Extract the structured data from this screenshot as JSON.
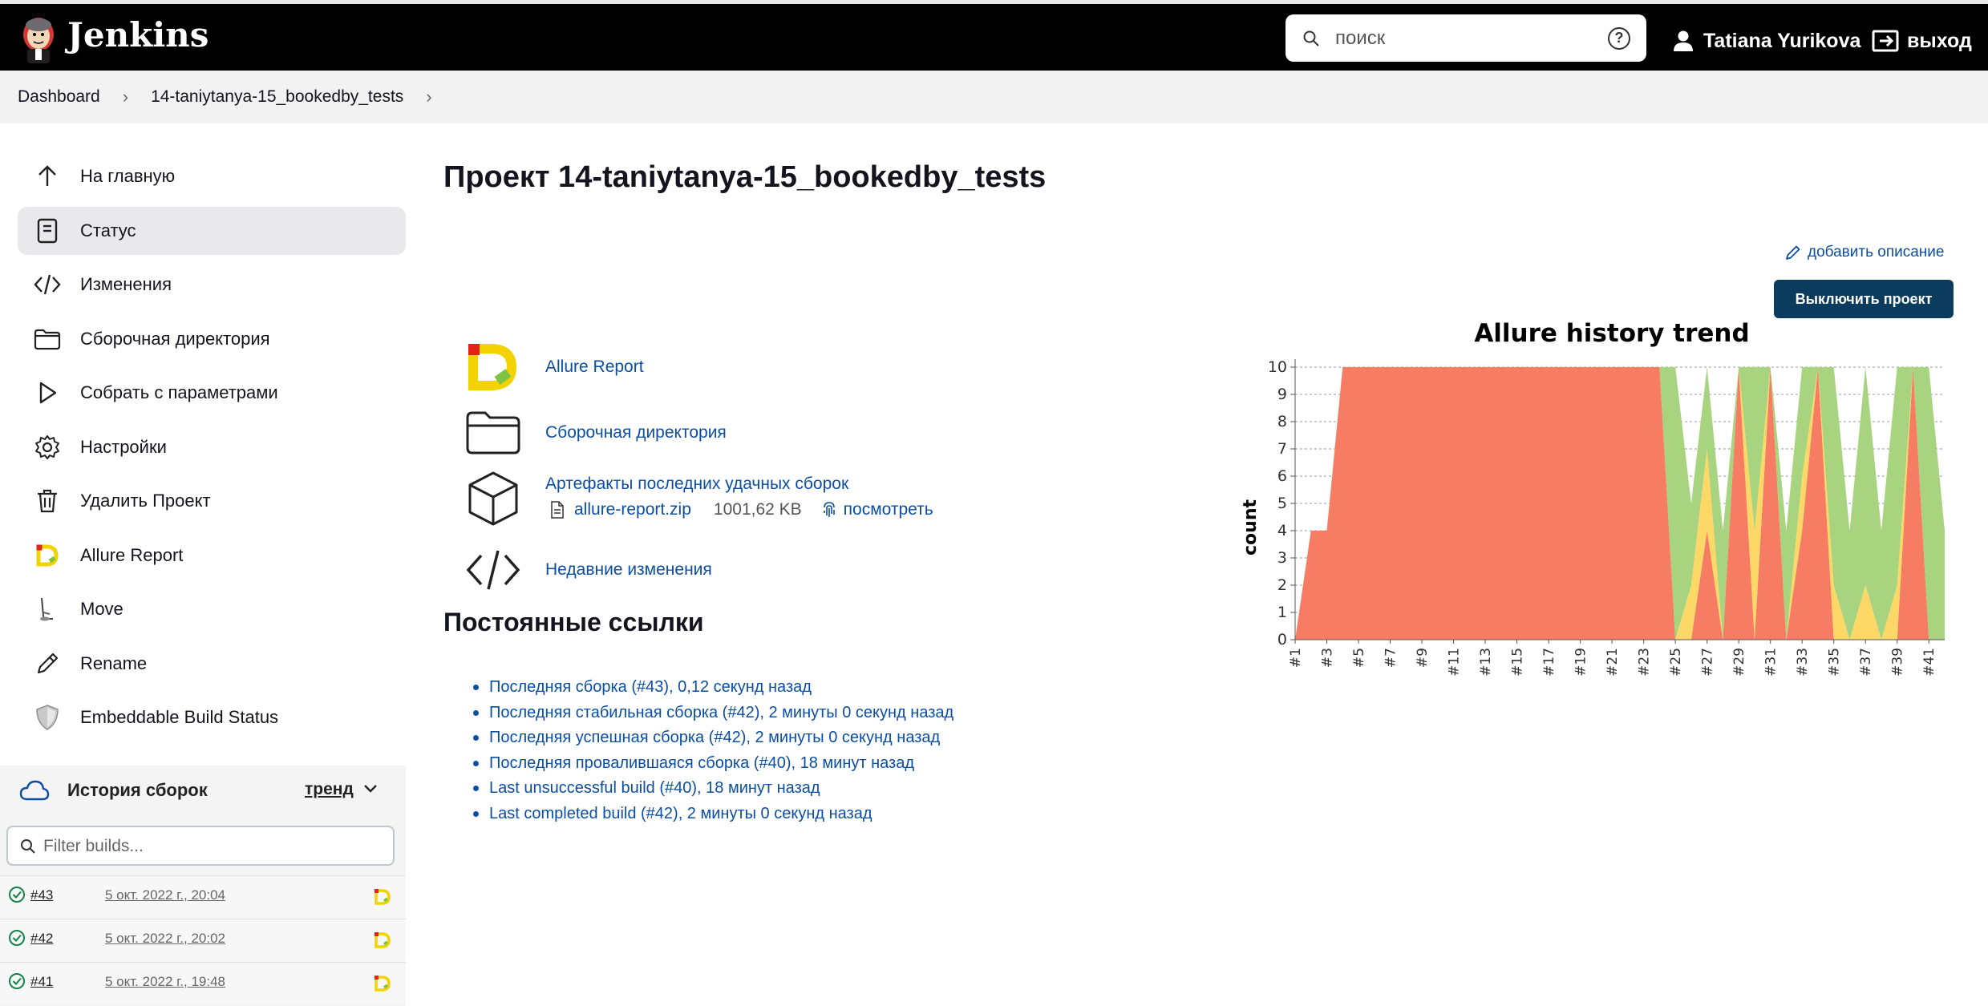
{
  "header": {
    "brand": "Jenkins",
    "search_placeholder": "поиск",
    "help": "?",
    "user_name": "Tatiana Yurikova",
    "logout_label": "выход"
  },
  "breadcrumb": {
    "items": [
      "Dashboard",
      "14-taniytanya-15_bookedby_tests"
    ]
  },
  "sidebar": {
    "tasks": [
      {
        "label": "На главную",
        "icon": "arrow-up-icon"
      },
      {
        "label": "Статус",
        "icon": "document-icon",
        "active": true
      },
      {
        "label": "Изменения",
        "icon": "code-icon"
      },
      {
        "label": "Сборочная директория",
        "icon": "folder-icon"
      },
      {
        "label": "Собрать с параметрами",
        "icon": "play-icon"
      },
      {
        "label": "Настройки",
        "icon": "gear-icon"
      },
      {
        "label": "Удалить Проект",
        "icon": "trash-icon"
      },
      {
        "label": "Allure Report",
        "icon": "allure-icon"
      },
      {
        "label": "Move",
        "icon": "move-icon"
      },
      {
        "label": "Rename",
        "icon": "pencil-icon"
      },
      {
        "label": "Embeddable Build Status",
        "icon": "shield-icon"
      }
    ]
  },
  "history": {
    "title": "История сборок",
    "trend_label": "тренд",
    "filter_placeholder": "Filter builds...",
    "builds": [
      {
        "number": "#43",
        "date": "5 окт. 2022 г., 20:04"
      },
      {
        "number": "#42",
        "date": "5 окт. 2022 г., 20:02"
      },
      {
        "number": "#41",
        "date": "5 окт. 2022 г., 19:48"
      }
    ]
  },
  "main": {
    "title": "Проект 14-taniytanya-15_bookedby_tests",
    "add_description": "добавить описание",
    "disable_button": "Выключить проект",
    "actions": {
      "allure": "Allure Report",
      "workspace": "Сборочная директория",
      "artifacts": "Артефакты последних удачных сборок",
      "artifact_file": "allure-report.zip",
      "artifact_size": "1001,62 KB",
      "artifact_view": "посмотреть",
      "changes": "Недавние изменения"
    },
    "permalinks_title": "Постоянные ссылки",
    "permalinks": [
      "Последняя сборка (#43), 0,12 секунд назад",
      "Последняя стабильная сборка (#42), 2 минуты 0 секунд назад",
      "Последняя успешная сборка (#42), 2 минуты 0 секунд назад",
      "Последняя провалившаяся сборка (#40), 18 минут назад",
      "Last unsuccessful build (#40), 18 минут назад",
      "Last completed build (#42), 2 минуты 0 секунд назад"
    ]
  },
  "colors": {
    "header_bg": "#000000",
    "link": "#0b4ea2",
    "button_bg": "#0b3c5d",
    "failed": "#f67d63",
    "broken": "#fdd867",
    "passed": "#a8d37f"
  },
  "chart_data": {
    "type": "area",
    "title": "Allure history trend",
    "ylabel": "count",
    "xlabel": "",
    "ylim": [
      0,
      10
    ],
    "yticks": [
      0,
      1,
      2,
      3,
      4,
      5,
      6,
      7,
      8,
      9,
      10
    ],
    "x": [
      "#1",
      "#2",
      "#3",
      "#4",
      "#5",
      "#6",
      "#7",
      "#8",
      "#9",
      "#10",
      "#11",
      "#12",
      "#13",
      "#14",
      "#15",
      "#16",
      "#17",
      "#18",
      "#19",
      "#20",
      "#21",
      "#22",
      "#23",
      "#24",
      "#25",
      "#26",
      "#27",
      "#28",
      "#29",
      "#30",
      "#31",
      "#32",
      "#33",
      "#34",
      "#35",
      "#36",
      "#37",
      "#38",
      "#39",
      "#40",
      "#41",
      "#42"
    ],
    "xtick_labels": [
      "#1",
      "#3",
      "#5",
      "#7",
      "#9",
      "#11",
      "#13",
      "#15",
      "#17",
      "#19",
      "#21",
      "#23",
      "#25",
      "#27",
      "#29",
      "#31",
      "#33",
      "#35",
      "#37",
      "#39",
      "#41"
    ],
    "stacked": true,
    "grid": true,
    "series": [
      {
        "name": "failed",
        "color": "#f67d63",
        "values": [
          0,
          4,
          4,
          10,
          10,
          10,
          10,
          10,
          10,
          10,
          10,
          10,
          10,
          10,
          10,
          10,
          10,
          10,
          10,
          10,
          10,
          10,
          10,
          10,
          0,
          0,
          4,
          0,
          10,
          0,
          10,
          0,
          4,
          10,
          0,
          0,
          0,
          0,
          0,
          10,
          0,
          0
        ]
      },
      {
        "name": "broken",
        "color": "#fdd867",
        "values": [
          0,
          0,
          0,
          0,
          0,
          0,
          0,
          0,
          0,
          0,
          0,
          0,
          0,
          0,
          0,
          0,
          0,
          0,
          0,
          0,
          0,
          0,
          0,
          0,
          0,
          2,
          3,
          0,
          0,
          4,
          0,
          0,
          2,
          0,
          2,
          0,
          2,
          0,
          2,
          0,
          0,
          0
        ]
      },
      {
        "name": "passed",
        "color": "#a8d37f",
        "values": [
          0,
          0,
          0,
          0,
          0,
          0,
          0,
          0,
          0,
          0,
          0,
          0,
          0,
          0,
          0,
          0,
          0,
          0,
          0,
          0,
          0,
          0,
          0,
          0,
          10,
          3,
          3,
          4,
          0,
          6,
          0,
          4,
          4,
          0,
          8,
          4,
          8,
          4,
          8,
          0,
          10,
          4
        ]
      }
    ]
  }
}
